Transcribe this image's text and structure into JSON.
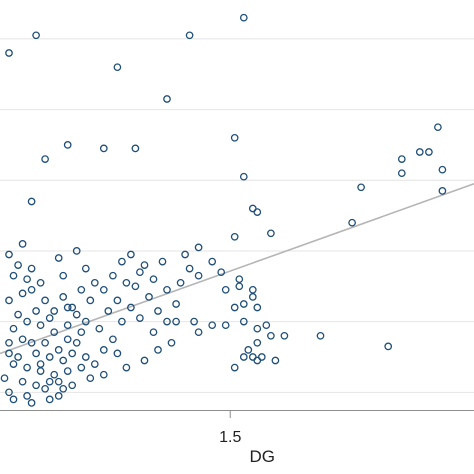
{
  "chart_data": {
    "type": "scatter",
    "title": "",
    "xlabel": "DG",
    "ylabel": "",
    "x_ticks": [
      "1.5"
    ],
    "xlim": [
      0.99,
      2.04
    ],
    "ylim": [
      -0.25,
      5.55
    ],
    "grid": true,
    "legend": "none",
    "colors": {
      "marker": "#1f4e79",
      "fit_line": "#b5b5b5",
      "grid": "#e4e4e4",
      "axis": "#8e8e8e"
    },
    "fit_line": {
      "x": [
        0.99,
        2.04
      ],
      "y": [
        0.55,
        2.95
      ]
    },
    "points": [
      {
        "x": 1.01,
        "y": 4.8
      },
      {
        "x": 1.07,
        "y": 5.05
      },
      {
        "x": 1.53,
        "y": 5.3
      },
      {
        "x": 1.41,
        "y": 5.05
      },
      {
        "x": 1.25,
        "y": 4.6
      },
      {
        "x": 1.36,
        "y": 4.15
      },
      {
        "x": 1.29,
        "y": 3.45
      },
      {
        "x": 1.14,
        "y": 3.5
      },
      {
        "x": 1.22,
        "y": 3.45
      },
      {
        "x": 1.09,
        "y": 3.3
      },
      {
        "x": 1.51,
        "y": 3.6
      },
      {
        "x": 1.96,
        "y": 3.75
      },
      {
        "x": 1.94,
        "y": 3.4
      },
      {
        "x": 1.92,
        "y": 3.4
      },
      {
        "x": 1.88,
        "y": 3.3
      },
      {
        "x": 1.97,
        "y": 3.15
      },
      {
        "x": 1.77,
        "y": 2.4
      },
      {
        "x": 1.88,
        "y": 3.1
      },
      {
        "x": 1.79,
        "y": 2.9
      },
      {
        "x": 1.97,
        "y": 2.85
      },
      {
        "x": 1.53,
        "y": 3.05
      },
      {
        "x": 1.55,
        "y": 2.6
      },
      {
        "x": 1.56,
        "y": 2.55
      },
      {
        "x": 1.59,
        "y": 2.25
      },
      {
        "x": 1.51,
        "y": 2.2
      },
      {
        "x": 1.43,
        "y": 2.05
      },
      {
        "x": 1.46,
        "y": 1.85
      },
      {
        "x": 1.48,
        "y": 1.7
      },
      {
        "x": 1.52,
        "y": 1.6
      },
      {
        "x": 1.52,
        "y": 1.5
      },
      {
        "x": 1.49,
        "y": 1.45
      },
      {
        "x": 1.55,
        "y": 1.45
      },
      {
        "x": 1.55,
        "y": 1.35
      },
      {
        "x": 1.51,
        "y": 1.2
      },
      {
        "x": 1.53,
        "y": 1.25
      },
      {
        "x": 1.56,
        "y": 1.2
      },
      {
        "x": 1.38,
        "y": 1.0
      },
      {
        "x": 1.42,
        "y": 1.0
      },
      {
        "x": 1.46,
        "y": 0.95
      },
      {
        "x": 1.49,
        "y": 0.95
      },
      {
        "x": 1.43,
        "y": 0.85
      },
      {
        "x": 1.53,
        "y": 1.0
      },
      {
        "x": 1.56,
        "y": 0.9
      },
      {
        "x": 1.58,
        "y": 0.95
      },
      {
        "x": 1.59,
        "y": 0.8
      },
      {
        "x": 1.62,
        "y": 0.8
      },
      {
        "x": 1.54,
        "y": 0.6
      },
      {
        "x": 1.56,
        "y": 0.7
      },
      {
        "x": 1.53,
        "y": 0.5
      },
      {
        "x": 1.55,
        "y": 0.5
      },
      {
        "x": 1.56,
        "y": 0.45
      },
      {
        "x": 1.57,
        "y": 0.5
      },
      {
        "x": 1.6,
        "y": 0.45
      },
      {
        "x": 1.51,
        "y": 0.35
      },
      {
        "x": 1.7,
        "y": 0.8
      },
      {
        "x": 1.85,
        "y": 0.65
      },
      {
        "x": 1.06,
        "y": 2.7
      },
      {
        "x": 1.04,
        "y": 2.1
      },
      {
        "x": 1.01,
        "y": 1.95
      },
      {
        "x": 1.03,
        "y": 1.8
      },
      {
        "x": 1.02,
        "y": 1.65
      },
      {
        "x": 1.05,
        "y": 1.6
      },
      {
        "x": 1.06,
        "y": 1.45
      },
      {
        "x": 1.08,
        "y": 1.55
      },
      {
        "x": 1.04,
        "y": 1.4
      },
      {
        "x": 1.01,
        "y": 1.3
      },
      {
        "x": 1.09,
        "y": 1.3
      },
      {
        "x": 1.07,
        "y": 1.15
      },
      {
        "x": 1.03,
        "y": 1.1
      },
      {
        "x": 1.05,
        "y": 1.0
      },
      {
        "x": 1.1,
        "y": 1.05
      },
      {
        "x": 1.02,
        "y": 0.9
      },
      {
        "x": 1.08,
        "y": 0.95
      },
      {
        "x": 1.11,
        "y": 0.85
      },
      {
        "x": 1.04,
        "y": 0.75
      },
      {
        "x": 1.06,
        "y": 0.7
      },
      {
        "x": 1.09,
        "y": 0.7
      },
      {
        "x": 1.12,
        "y": 0.6
      },
      {
        "x": 1.01,
        "y": 0.55
      },
      {
        "x": 1.03,
        "y": 0.5
      },
      {
        "x": 1.07,
        "y": 0.55
      },
      {
        "x": 1.1,
        "y": 0.5
      },
      {
        "x": 1.13,
        "y": 0.45
      },
      {
        "x": 1.02,
        "y": 0.4
      },
      {
        "x": 1.05,
        "y": 0.35
      },
      {
        "x": 1.08,
        "y": 0.3
      },
      {
        "x": 1.11,
        "y": 0.25
      },
      {
        "x": 1.14,
        "y": 0.3
      },
      {
        "x": 1.0,
        "y": 0.2
      },
      {
        "x": 1.04,
        "y": 0.15
      },
      {
        "x": 1.07,
        "y": 0.1
      },
      {
        "x": 1.1,
        "y": 0.15
      },
      {
        "x": 1.13,
        "y": 0.05
      },
      {
        "x": 1.01,
        "y": 0.0
      },
      {
        "x": 1.05,
        "y": -0.05
      },
      {
        "x": 1.09,
        "y": 0.05
      },
      {
        "x": 1.02,
        "y": -0.1
      },
      {
        "x": 1.06,
        "y": -0.15
      },
      {
        "x": 1.1,
        "y": -0.1
      },
      {
        "x": 1.15,
        "y": 0.55
      },
      {
        "x": 1.16,
        "y": 0.7
      },
      {
        "x": 1.17,
        "y": 0.85
      },
      {
        "x": 1.14,
        "y": 0.95
      },
      {
        "x": 1.16,
        "y": 1.1
      },
      {
        "x": 1.18,
        "y": 1.0
      },
      {
        "x": 1.15,
        "y": 1.2
      },
      {
        "x": 1.19,
        "y": 1.3
      },
      {
        "x": 1.17,
        "y": 1.45
      },
      {
        "x": 1.2,
        "y": 1.55
      },
      {
        "x": 1.13,
        "y": 1.65
      },
      {
        "x": 1.18,
        "y": 1.75
      },
      {
        "x": 1.16,
        "y": 2.0
      },
      {
        "x": 1.2,
        "y": 0.4
      },
      {
        "x": 1.19,
        "y": 0.2
      },
      {
        "x": 1.17,
        "y": 0.35
      },
      {
        "x": 1.22,
        "y": 0.6
      },
      {
        "x": 1.24,
        "y": 0.75
      },
      {
        "x": 1.21,
        "y": 0.9
      },
      {
        "x": 1.26,
        "y": 1.0
      },
      {
        "x": 1.23,
        "y": 1.15
      },
      {
        "x": 1.25,
        "y": 1.3
      },
      {
        "x": 1.22,
        "y": 1.45
      },
      {
        "x": 1.27,
        "y": 1.55
      },
      {
        "x": 1.24,
        "y": 1.65
      },
      {
        "x": 1.29,
        "y": 1.5
      },
      {
        "x": 1.3,
        "y": 1.7
      },
      {
        "x": 1.26,
        "y": 1.85
      },
      {
        "x": 1.28,
        "y": 1.95
      },
      {
        "x": 1.31,
        "y": 1.8
      },
      {
        "x": 1.33,
        "y": 1.6
      },
      {
        "x": 1.35,
        "y": 1.85
      },
      {
        "x": 1.32,
        "y": 1.35
      },
      {
        "x": 1.28,
        "y": 1.2
      },
      {
        "x": 1.3,
        "y": 1.05
      },
      {
        "x": 1.34,
        "y": 1.15
      },
      {
        "x": 1.36,
        "y": 1.0
      },
      {
        "x": 1.38,
        "y": 1.25
      },
      {
        "x": 1.39,
        "y": 1.55
      },
      {
        "x": 1.4,
        "y": 1.95
      },
      {
        "x": 1.41,
        "y": 1.75
      },
      {
        "x": 1.37,
        "y": 0.7
      },
      {
        "x": 1.34,
        "y": 0.6
      },
      {
        "x": 1.31,
        "y": 0.45
      },
      {
        "x": 1.27,
        "y": 0.35
      },
      {
        "x": 1.25,
        "y": 0.55
      },
      {
        "x": 1.33,
        "y": 0.85
      },
      {
        "x": 1.36,
        "y": 1.45
      },
      {
        "x": 1.43,
        "y": 1.65
      },
      {
        "x": 1.12,
        "y": 1.9
      },
      {
        "x": 1.06,
        "y": 1.75
      },
      {
        "x": 1.08,
        "y": 0.4
      },
      {
        "x": 1.12,
        "y": 0.15
      },
      {
        "x": 1.15,
        "y": 0.1
      },
      {
        "x": 1.22,
        "y": 0.25
      },
      {
        "x": 1.18,
        "y": 0.5
      },
      {
        "x": 1.14,
        "y": 0.75
      },
      {
        "x": 1.11,
        "y": 1.15
      },
      {
        "x": 1.13,
        "y": 1.35
      },
      {
        "x": 1.12,
        "y": -0.05
      },
      {
        "x": 1.14,
        "y": 1.2
      },
      {
        "x": 1.01,
        "y": 0.7
      }
    ]
  }
}
